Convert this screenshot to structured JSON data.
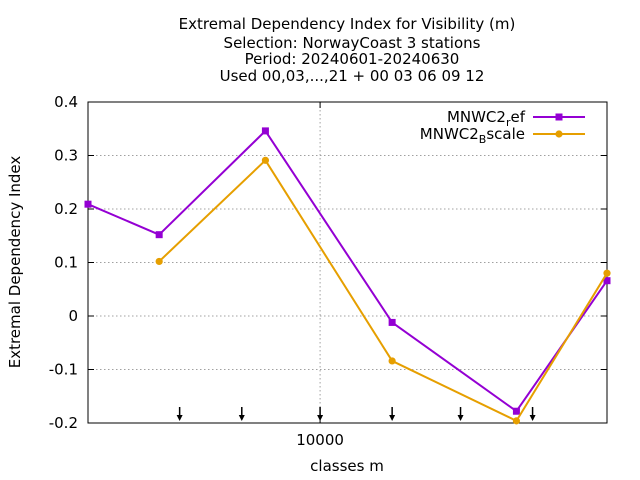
{
  "chart_data": {
    "type": "line",
    "title_lines": [
      "Extremal Dependency Index  for Visibility (m)",
      "Selection: NorwayCoast      3 stations",
      "Period: 20240601-20240630",
      "Used 00,03,...,21 + 00 03 06 09 12"
    ],
    "xlabel": "classes m",
    "ylabel": "Extremal Dependency Index",
    "x_scale": "log",
    "xlim": [
      2200,
      65000
    ],
    "ylim": [
      -0.2,
      0.4
    ],
    "x_ticks": [
      10000
    ],
    "x_tick_labels": [
      "10000"
    ],
    "y_ticks": [
      -0.2,
      -0.1,
      0,
      0.1,
      0.2,
      0.3,
      0.4
    ],
    "y_tick_labels": [
      "-0.2",
      "-0.1",
      "0",
      "0.1",
      "0.2",
      "0.3",
      "0.4"
    ],
    "grid": true,
    "legend_position": "top-right",
    "class_arrow_x": [
      4000,
      6000,
      10000,
      16000,
      25000,
      40000
    ],
    "series": [
      {
        "name": "MNWC2_ref",
        "legend_base": "MNWC2",
        "legend_sub": "r",
        "legend_rest": "ef",
        "color": "#9400d3",
        "marker": "square",
        "x": [
          2200,
          3500,
          7000,
          16000,
          36000,
          65000
        ],
        "y": [
          0.209,
          0.152,
          0.346,
          -0.012,
          -0.178,
          0.066
        ]
      },
      {
        "name": "MNWC2_Bscale",
        "legend_base": "MNWC2",
        "legend_sub": "B",
        "legend_rest": "scale",
        "color": "#e69f00",
        "marker": "circle",
        "x": [
          3500,
          7000,
          16000,
          36000,
          65000
        ],
        "y": [
          0.102,
          0.291,
          -0.084,
          -0.196,
          0.08
        ]
      }
    ]
  }
}
